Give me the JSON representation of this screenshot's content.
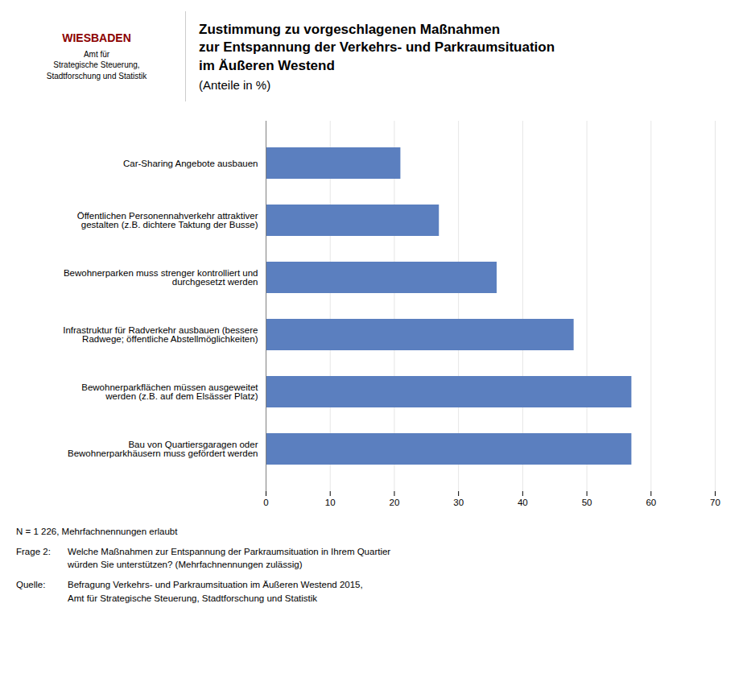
{
  "chart_data": {
    "type": "bar",
    "orientation": "horizontal",
    "title": "Zustimmung zu vorgeschlagenen Maßnahmen\nzur Entspannung der Verkehrs- und Parkraumsituation\nim Äußeren Westend",
    "subtitle": "(Anteile in %)",
    "categories": [
      "Bau von Quartiersgaragen oder\nBewohnerparkhäusern muss gefördert werden",
      "Bewohnerparkflächen müssen ausgeweitet\nwerden (z.B. auf dem Elsässer Platz)",
      "Infrastruktur für Radverkehr ausbauen (bessere\nRadwege; öffentliche Abstellmöglichkeiten)",
      "Bewohnerparken muss strenger kontrolliert und\ndurchgesetzt werden",
      "Öffentlichen Personennahverkehr attraktiver\ngestalten (z.B. dichtere Taktung der Busse)",
      "Car-Sharing Angebote ausbauen"
    ],
    "values": [
      57,
      57,
      48,
      36,
      27,
      21
    ],
    "color": "#5b7fbf",
    "xlim": [
      0,
      70
    ],
    "xticks": [
      0,
      10,
      20,
      30,
      40,
      50,
      60,
      70
    ],
    "grid": true,
    "annotations": [
      "WIESBADEN",
      "Amt für\nStrategische Steuerung,\nStadtforschung und Statistik",
      "N = 1 226, Mehrfachnennungen erlaubt",
      "Frage 2:",
      "Welche Maßnahmen zur Entspannung der Parkraumsituation in Ihrem Quartier\nwürden Sie unterstützen? (Mehrfachnennungen zulässig)",
      "Quelle:",
      "Befragung Verkehrs- und Parkraumsituation im Äußeren Westend 2015,\nAmt für Strategische Steuerung, Stadtforschung und Statistik"
    ]
  }
}
